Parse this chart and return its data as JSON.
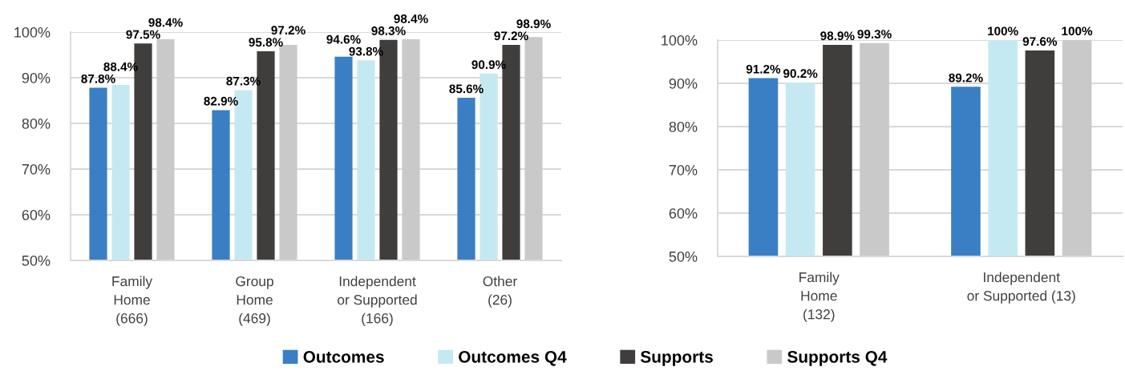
{
  "chart_data": [
    {
      "type": "bar",
      "categories": [
        "Family\nHome\n(666)",
        "Group\nHome\n(469)",
        "Independent\nor Supported\n(166)",
        "Other\n(26)"
      ],
      "series": [
        {
          "name": "Outcomes",
          "color": "#3a7fc4",
          "values": [
            87.8,
            82.9,
            94.6,
            85.6
          ],
          "value_labels": [
            "87.8%",
            "82.9%",
            "94.6%",
            "85.6%"
          ]
        },
        {
          "name": "Outcomes Q4",
          "color": "#c5e9f3",
          "values": [
            88.4,
            87.3,
            93.8,
            90.9
          ],
          "value_labels": [
            "88.4%",
            "87.3%",
            "93.8%",
            "90.9%"
          ]
        },
        {
          "name": "Supports",
          "color": "#403e3c",
          "values": [
            97.5,
            95.8,
            98.3,
            97.2
          ],
          "value_labels": [
            "97.5%",
            "95.8%",
            "98.3%",
            "97.2%"
          ]
        },
        {
          "name": "Supports Q4",
          "color": "#c9c9c9",
          "values": [
            98.4,
            97.2,
            98.4,
            98.9
          ],
          "value_labels": [
            "98.4%",
            "97.2%",
            "98.4%",
            "98.9%"
          ]
        }
      ],
      "ylim": [
        50,
        100
      ],
      "yticks": [
        {
          "value": 50,
          "label": "50%"
        },
        {
          "value": 60,
          "label": "60%"
        },
        {
          "value": 70,
          "label": "70%"
        },
        {
          "value": 80,
          "label": "80%"
        },
        {
          "value": 90,
          "label": "90%"
        },
        {
          "value": 100,
          "label": "100%"
        }
      ],
      "grid": "y",
      "legend": "bottom"
    },
    {
      "type": "bar",
      "categories": [
        "Family\nHome\n(132)",
        "Independent\nor Supported (13)"
      ],
      "series": [
        {
          "color": "#3a7fc4",
          "values": [
            91.2,
            89.2
          ],
          "value_labels": [
            "91.2%",
            "89.2%"
          ]
        },
        {
          "color": "#c5e9f3",
          "values": [
            90.2,
            100
          ],
          "value_labels": [
            "90.2%",
            "100%"
          ]
        },
        {
          "color": "#403e3c",
          "values": [
            98.9,
            97.6
          ],
          "value_labels": [
            "98.9%",
            "97.6%"
          ]
        },
        {
          "color": "#c9c9c9",
          "values": [
            99.3,
            100
          ],
          "value_labels": [
            "99.3%",
            "100%"
          ]
        }
      ],
      "ylim": [
        50,
        100
      ],
      "yticks": [
        {
          "value": 50,
          "label": "50%"
        },
        {
          "value": 60,
          "label": "60%"
        },
        {
          "value": 70,
          "label": "70%"
        },
        {
          "value": 80,
          "label": "80%"
        },
        {
          "value": 90,
          "label": "90%"
        },
        {
          "value": 100,
          "label": "100%"
        }
      ],
      "grid": "y"
    }
  ]
}
